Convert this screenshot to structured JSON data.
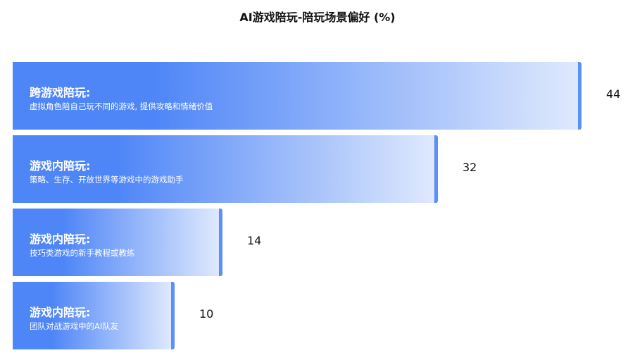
{
  "chart_data": {
    "type": "bar",
    "orientation": "horizontal",
    "title": "AI游戏陪玩-陪玩场景偏好 (%)",
    "categories": [
      {
        "label": "跨游戏陪玩:",
        "desc": "虚拟角色陪自己玩不同的游戏, 提供攻略和情绪价值"
      },
      {
        "label": "游戏内陪玩:",
        "desc": "策略、生存、开放世界等游戏中的游戏助手"
      },
      {
        "label": "游戏内陪玩:",
        "desc": "技巧类游戏的新手教程或教练"
      },
      {
        "label": "游戏内陪玩:",
        "desc": "团队对战游戏中的AI队友"
      }
    ],
    "values": [
      44,
      32,
      14,
      10
    ],
    "grid": false,
    "colors": {
      "bar_start": "#4f86f7",
      "bar_end": "#dfe9fd",
      "bar_edge": "#5b8ff9"
    }
  }
}
